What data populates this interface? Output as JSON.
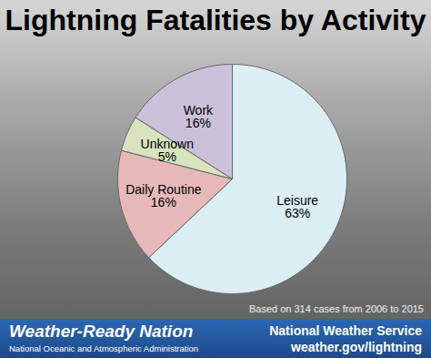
{
  "chart_data": {
    "type": "pie",
    "title": "Lightning Fatalities by Activity",
    "categories": [
      "Leisure",
      "Daily Routine",
      "Unknown",
      "Work"
    ],
    "values": [
      63,
      16,
      5,
      16
    ],
    "value_labels": [
      "63%",
      "16%",
      "5%",
      "16%"
    ],
    "colors": [
      "#dbeef4",
      "#e6b9b8",
      "#d7e4bd",
      "#ccc1da"
    ],
    "data_labels": true,
    "caption": "Based on 314 cases from 2006 to 2015",
    "footer": {
      "left": [
        "Weather-Ready Nation",
        "National Oceanic and Atmospheric Administration"
      ],
      "right": [
        "National Weather Service",
        "weather.gov/lightning"
      ]
    }
  }
}
